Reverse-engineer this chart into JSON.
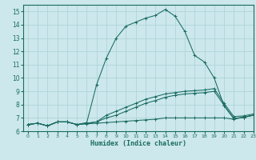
{
  "xlabel": "Humidex (Indice chaleur)",
  "bg_color": "#cce8ec",
  "grid_color": "#b0d4d8",
  "line_color": "#1a6b60",
  "xlim": [
    -0.5,
    23
  ],
  "ylim": [
    6,
    15.5
  ],
  "yticks": [
    6,
    7,
    8,
    9,
    10,
    11,
    12,
    13,
    14,
    15
  ],
  "xticks": [
    0,
    1,
    2,
    3,
    4,
    5,
    6,
    7,
    8,
    9,
    10,
    11,
    12,
    13,
    14,
    15,
    16,
    17,
    18,
    19,
    20,
    21,
    22,
    23
  ],
  "series": [
    [
      6.5,
      6.6,
      6.4,
      6.7,
      6.7,
      6.5,
      6.55,
      6.6,
      6.65,
      6.7,
      6.75,
      6.8,
      6.85,
      6.9,
      7.0,
      7.0,
      7.0,
      7.0,
      7.0,
      7.0,
      7.0,
      6.9,
      7.05,
      7.2
    ],
    [
      6.5,
      6.6,
      6.4,
      6.7,
      6.7,
      6.5,
      6.6,
      6.7,
      7.0,
      7.2,
      7.5,
      7.8,
      8.1,
      8.3,
      8.55,
      8.7,
      8.8,
      8.85,
      8.9,
      9.0,
      7.95,
      6.95,
      7.05,
      7.2
    ],
    [
      6.5,
      6.6,
      6.4,
      6.7,
      6.7,
      6.5,
      6.6,
      6.7,
      7.2,
      7.5,
      7.8,
      8.1,
      8.4,
      8.6,
      8.8,
      8.9,
      9.0,
      9.05,
      9.1,
      9.2,
      8.1,
      7.1,
      7.15,
      7.3
    ],
    [
      6.5,
      6.6,
      6.4,
      6.7,
      6.7,
      6.5,
      6.65,
      9.5,
      11.5,
      13.0,
      13.9,
      14.2,
      14.5,
      14.7,
      15.15,
      14.65,
      13.5,
      11.7,
      11.2,
      10.0,
      7.9,
      6.95,
      7.05,
      7.2
    ]
  ]
}
